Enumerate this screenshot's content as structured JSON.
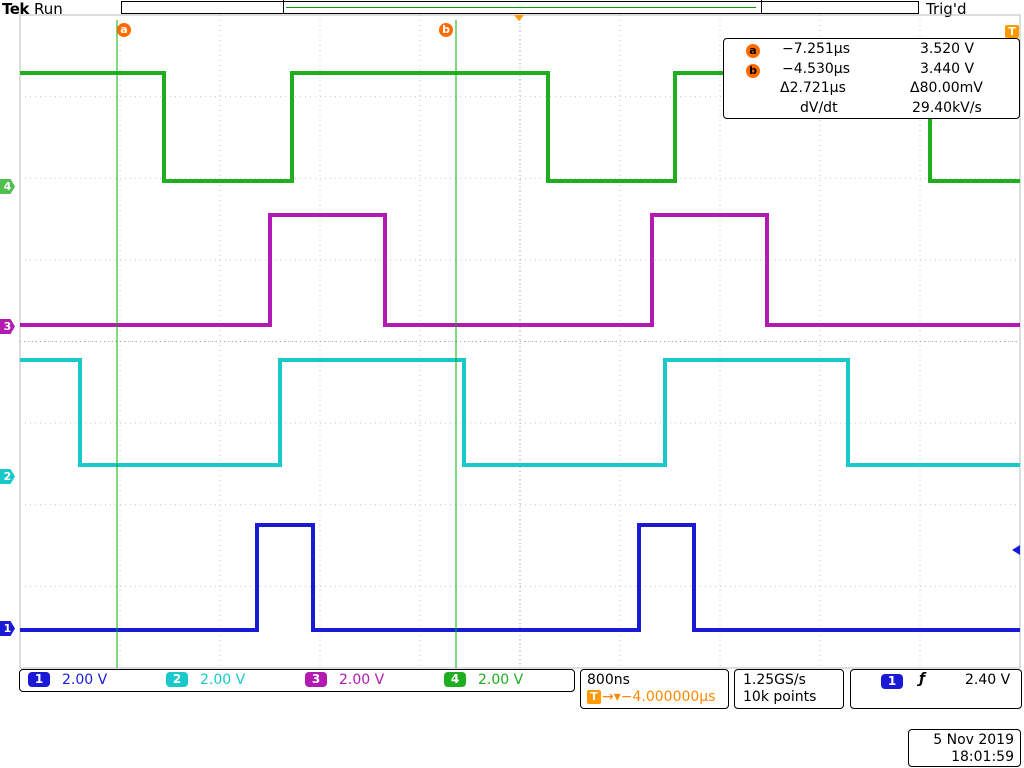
{
  "header": {
    "brand": "Tek",
    "run_state": "Run",
    "trigger_state": "Trig'd"
  },
  "cursors": {
    "a_label": "a",
    "b_label": "b"
  },
  "trigger_marker": "T",
  "readout": {
    "a_badge": "a",
    "a_time": "−7.251µs",
    "a_volt": "3.520 V",
    "b_badge": "b",
    "b_time": "−4.530µs",
    "b_volt": "3.440 V",
    "delta_time": "Δ2.721µs",
    "delta_volt": "Δ80.00mV",
    "rate_label": "dV/dt",
    "rate_value": "29.40kV/s"
  },
  "channels": [
    {
      "num": "1",
      "scale": "2.00 V",
      "color": "#1a1ad6"
    },
    {
      "num": "2",
      "scale": "2.00 V",
      "color": "#19c9c9"
    },
    {
      "num": "3",
      "scale": "2.00 V",
      "color": "#b21ab2"
    },
    {
      "num": "4",
      "scale": "2.00 V",
      "color": "#1fae1f"
    }
  ],
  "timebase": {
    "scale": "800ns",
    "position_icon": "T",
    "position": "→▾−4.000000µs"
  },
  "acquisition": {
    "rate": "1.25GS/s",
    "record": "10k points"
  },
  "trigger": {
    "source": "1",
    "slope_icon": "rising-edge-icon",
    "slope_glyph": "ƒ",
    "level": "2.40 V"
  },
  "datetime": {
    "date": "5 Nov 2019",
    "time": "18:01:59"
  }
}
